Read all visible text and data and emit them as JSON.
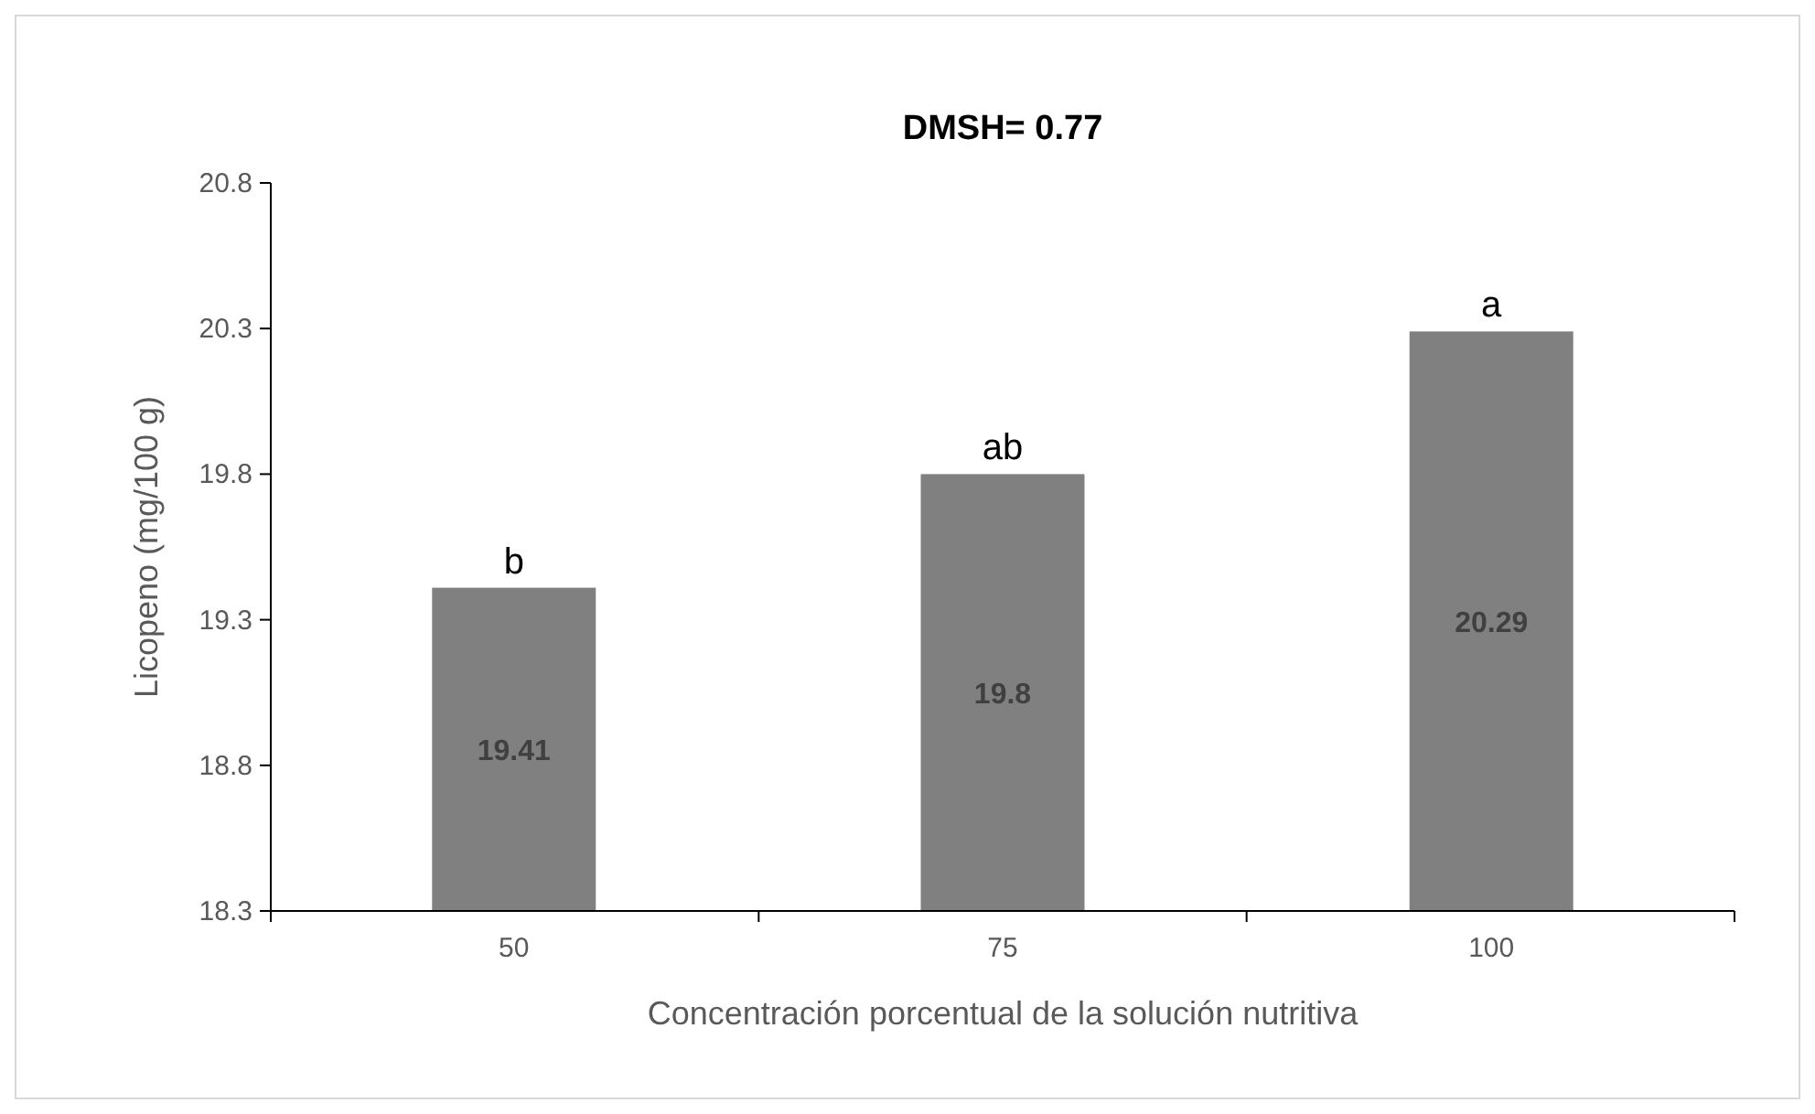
{
  "chart_data": {
    "type": "bar",
    "title": "DMSH= 0.77",
    "xlabel": "Concentración porcentual de la solución nutritiva",
    "ylabel": "Licopeno (mg/100 g)",
    "categories": [
      "50",
      "75",
      "100"
    ],
    "values": [
      19.41,
      19.8,
      20.29
    ],
    "color": "#808080",
    "ylim": [
      18.3,
      20.8
    ],
    "yticks": [
      18.3,
      18.8,
      19.3,
      19.8,
      20.3,
      20.8
    ],
    "data_labels": true,
    "grid": false,
    "annotations": [
      {
        "text": "b",
        "x": "50",
        "y": 19.41
      },
      {
        "text": "ab",
        "x": "75",
        "y": 19.8
      },
      {
        "text": "a",
        "x": "100",
        "y": 20.29
      }
    ]
  }
}
